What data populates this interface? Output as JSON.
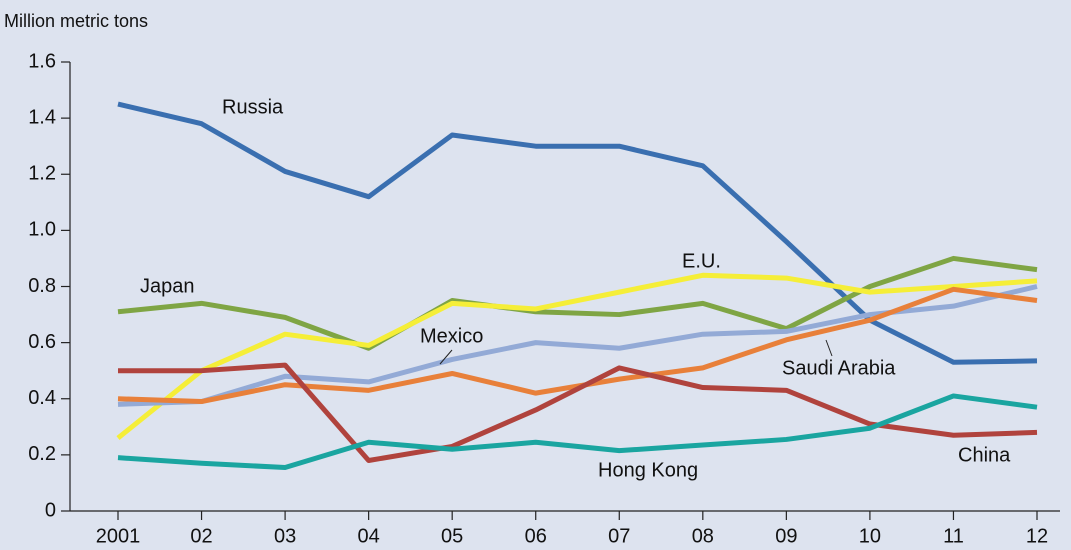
{
  "chart_data": {
    "type": "line",
    "y_axis_label": "Million metric tons",
    "categories": [
      "2001",
      "02",
      "03",
      "04",
      "05",
      "06",
      "07",
      "08",
      "09",
      "10",
      "11",
      "12"
    ],
    "ylim": [
      0,
      1.6
    ],
    "yticks": [
      0,
      0.2,
      0.4,
      0.6,
      0.8,
      {
        "value": 1,
        "label": "1.0"
      },
      1.2,
      1.4,
      1.6
    ],
    "series": [
      {
        "name": "Russia",
        "color": "#3a6fb0",
        "values": [
          1.45,
          1.38,
          1.21,
          1.12,
          1.34,
          1.3,
          1.3,
          1.23,
          0.96,
          0.68,
          0.53,
          0.535
        ]
      },
      {
        "name": "Japan",
        "color": "#7fa544",
        "values": [
          0.71,
          0.74,
          0.69,
          0.58,
          0.75,
          0.71,
          0.7,
          0.74,
          0.65,
          0.8,
          0.9,
          0.86
        ]
      },
      {
        "name": "E.U.",
        "color": "#f5ee38",
        "values": [
          0.26,
          0.5,
          0.63,
          0.59,
          0.74,
          0.72,
          0.78,
          0.84,
          0.83,
          0.78,
          0.8,
          0.82
        ]
      },
      {
        "name": "Mexico",
        "color": "#93aad6",
        "values": [
          0.38,
          0.39,
          0.48,
          0.46,
          0.54,
          0.6,
          0.58,
          0.63,
          0.64,
          0.7,
          0.73,
          0.8
        ]
      },
      {
        "name": "Saudi Arabia",
        "color": "#e8803a",
        "values": [
          0.4,
          0.39,
          0.45,
          0.43,
          0.49,
          0.42,
          0.47,
          0.51,
          0.61,
          0.68,
          0.79,
          0.75
        ]
      },
      {
        "name": "China",
        "color": "#b0433d",
        "values": [
          0.5,
          0.5,
          0.52,
          0.18,
          0.23,
          0.36,
          0.51,
          0.44,
          0.43,
          0.31,
          0.27,
          0.28
        ]
      },
      {
        "name": "Hong Kong",
        "color": "#1aa5a0",
        "values": [
          0.19,
          0.17,
          0.155,
          0.245,
          0.22,
          0.245,
          0.215,
          0.235,
          0.255,
          0.295,
          0.41,
          0.37
        ]
      }
    ]
  }
}
